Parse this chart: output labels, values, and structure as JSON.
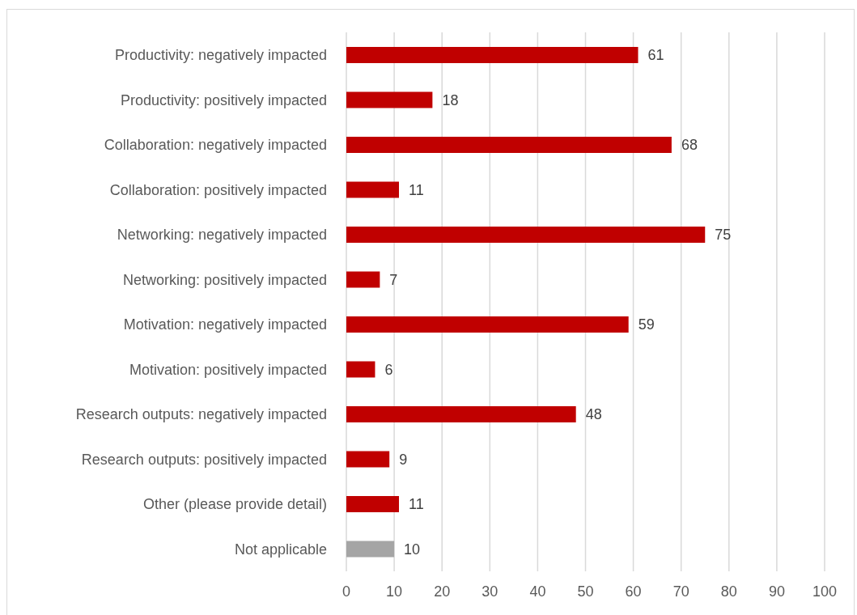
{
  "chart_data": {
    "type": "bar",
    "orientation": "horizontal",
    "categories": [
      "Productivity: negatively impacted",
      "Productivity: positively impacted",
      "Collaboration: negatively impacted",
      "Collaboration: positively impacted",
      "Networking: negatively impacted",
      "Networking: positively impacted",
      "Motivation: negatively impacted",
      "Motivation: positively impacted",
      "Research outputs: negatively impacted",
      "Research outputs: positively impacted",
      "Other (please provide detail)",
      "Not applicable"
    ],
    "values": [
      61,
      18,
      68,
      11,
      75,
      7,
      59,
      6,
      48,
      9,
      11,
      10
    ],
    "colors": [
      "#c00000",
      "#c00000",
      "#c00000",
      "#c00000",
      "#c00000",
      "#c00000",
      "#c00000",
      "#c00000",
      "#c00000",
      "#c00000",
      "#c00000",
      "#a5a5a5"
    ],
    "xlim": [
      0,
      100
    ],
    "xticks": [
      0,
      10,
      20,
      30,
      40,
      50,
      60,
      70,
      80,
      90,
      100
    ],
    "grid": "x",
    "data_labels": true
  }
}
